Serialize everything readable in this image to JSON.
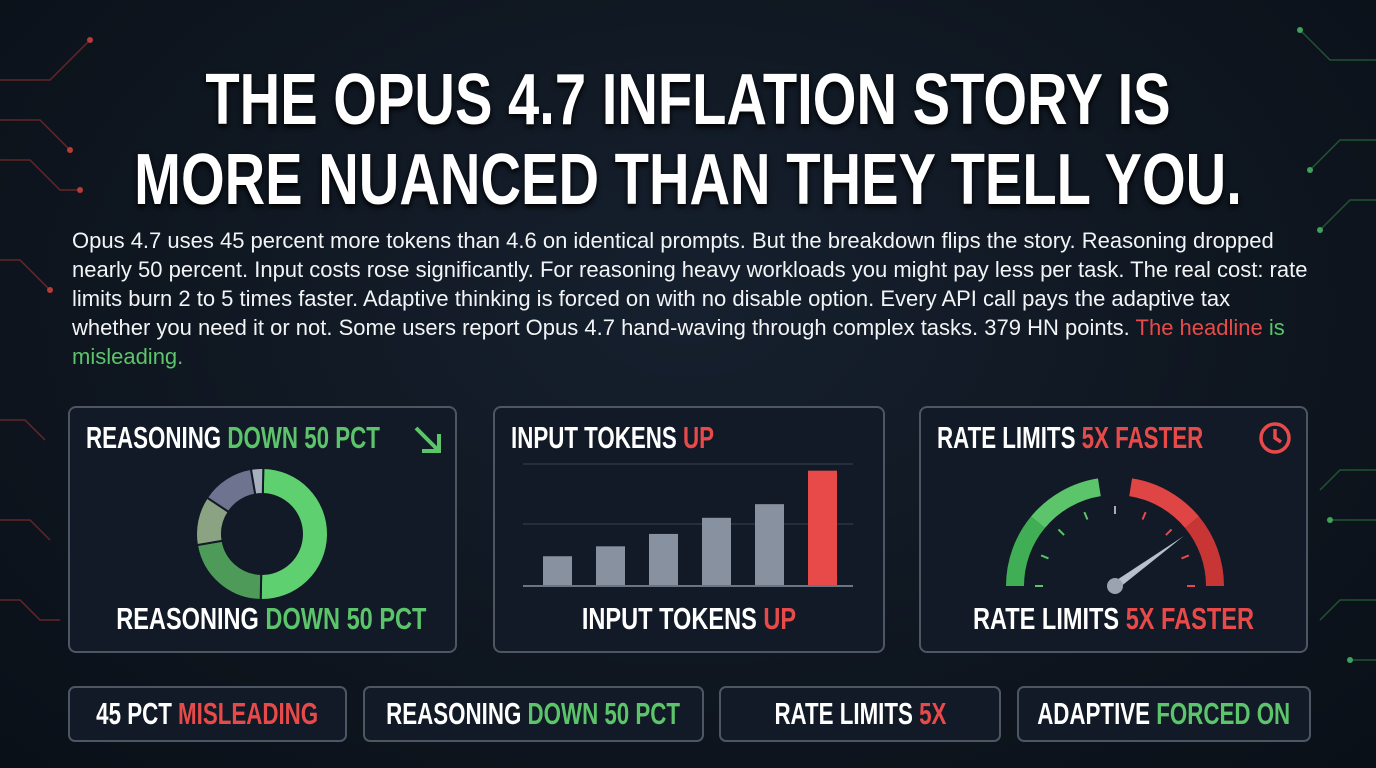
{
  "headline": {
    "line1": "THE OPUS 4.7 INFLATION STORY IS",
    "line2": "MORE NUANCED THAN THEY TELL YOU."
  },
  "body": {
    "text": "Opus 4.7 uses 45 percent more tokens than 4.6 on identical prompts. But the breakdown flips the story. Reasoning dropped nearly 50 percent. Input costs rose significantly. For reasoning heavy workloads you might pay less per task. The real cost: rate limits burn 2 to 5 times faster. Adaptive thinking is forced on with no disable option. Every API call pays the adaptive tax whether you need it or not. Some users report Opus 4.7 hand-waving through complex tasks. 379 HN points. ",
    "highlight_red": "The headline",
    "highlight_green": " is misleading."
  },
  "colors": {
    "red": "#e84a4a",
    "green": "#5cc46a",
    "panel_border": "#4d5663",
    "bar_gray": "#8791a0"
  },
  "panels": [
    {
      "title_a": "REASONING ",
      "title_b": "DOWN 50 PCT",
      "caption_a": "REASONING ",
      "caption_b": "DOWN 50 PCT",
      "icon": "arrow-down-right-icon",
      "donut": [
        {
          "share": 0.5,
          "color": "#5fd070"
        },
        {
          "share": 0.22,
          "color": "#4e9a58"
        },
        {
          "share": 0.12,
          "color": "#8ba383"
        },
        {
          "share": 0.13,
          "color": "#6e7490"
        },
        {
          "share": 0.03,
          "color": "#a7b0bc"
        }
      ]
    },
    {
      "title_a": "INPUT TOKENS ",
      "title_b": "UP",
      "caption_a": "INPUT TOKENS ",
      "caption_b": "UP",
      "bars": [
        0.24,
        0.32,
        0.42,
        0.55,
        0.66,
        0.93
      ]
    },
    {
      "title_a": "RATE LIMITS ",
      "title_b": "5X FASTER",
      "caption_a": "RATE LIMITS ",
      "caption_b": "5X FASTER",
      "icon": "clock-icon",
      "gauge_level": 0.8
    }
  ],
  "pills": [
    {
      "a": "45 PCT ",
      "b": "MISLEADING",
      "b_color": "red"
    },
    {
      "a": "REASONING ",
      "b": "DOWN 50 PCT",
      "b_color": "green"
    },
    {
      "a": "RATE LIMITS ",
      "b": "5X",
      "b_color": "red"
    },
    {
      "a": "ADAPTIVE ",
      "b": "FORCED ON",
      "b_color": "green"
    }
  ]
}
